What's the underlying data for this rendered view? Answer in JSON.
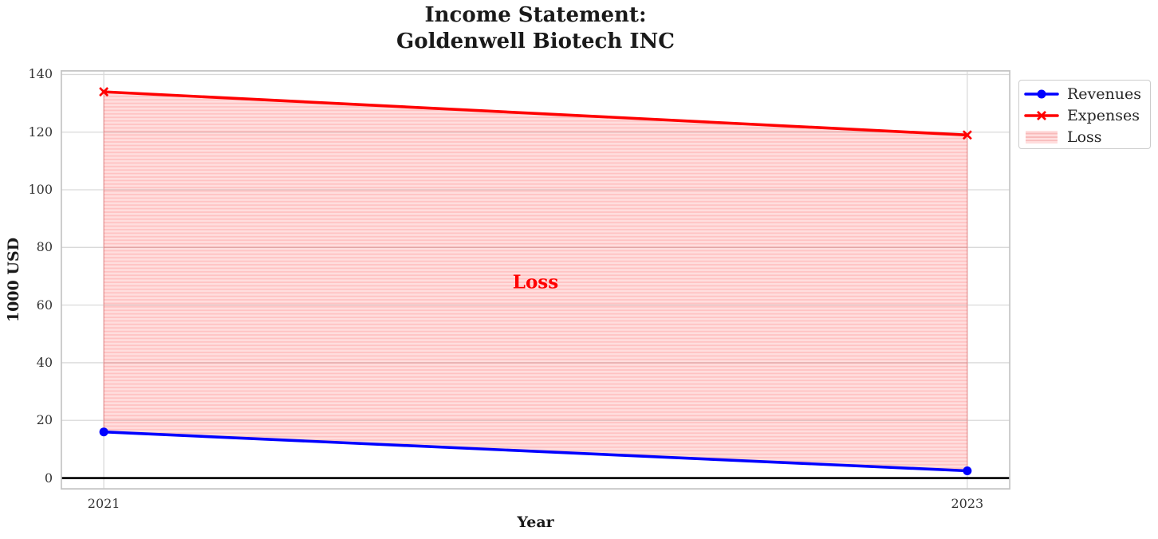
{
  "title": {
    "line1": "Income Statement:",
    "line2": "Goldenwell Biotech INC"
  },
  "chart_data": {
    "type": "line",
    "x": [
      2021,
      2023
    ],
    "xticks": [
      "2021",
      "2023"
    ],
    "yticks": [
      0,
      20,
      40,
      60,
      80,
      100,
      120,
      140
    ],
    "xlabel": "Year",
    "ylabel": "1000 USD",
    "xlim": [
      2020.9,
      2023.1
    ],
    "ylim": [
      -4,
      141.5
    ],
    "grid": true,
    "series": [
      {
        "name": "Revenues",
        "values": [
          16,
          2.5
        ],
        "color": "#0000ff",
        "marker": "circle"
      },
      {
        "name": "Expenses",
        "values": [
          134,
          119
        ],
        "color": "#ff0000",
        "marker": "x"
      }
    ],
    "loss_area": {
      "label": "Loss",
      "between": [
        "Revenues",
        "Expenses"
      ],
      "fill_color": "#ff0000",
      "hatch": "horizontal"
    },
    "annotation": {
      "text": "Loss",
      "x": 2022,
      "y": 68,
      "color": "#ff0000"
    },
    "zero_line_y": 0,
    "legend_position": "outside upper right"
  },
  "legend": {
    "items": [
      {
        "label": "Revenues",
        "color": "#0000ff",
        "marker": "circle",
        "swatch": "line"
      },
      {
        "label": "Expenses",
        "color": "#ff0000",
        "marker": "x",
        "swatch": "line"
      },
      {
        "label": "Loss",
        "color": "#ff0000",
        "marker": "none",
        "swatch": "hatch"
      }
    ]
  },
  "colors": {
    "revenues": "#0000ff",
    "expenses": "#ff0000",
    "loss_text": "#ff0000",
    "grid": "#d9d9d9",
    "border": "#c6c6c6",
    "zero_line": "#000000",
    "text": "#262626"
  }
}
